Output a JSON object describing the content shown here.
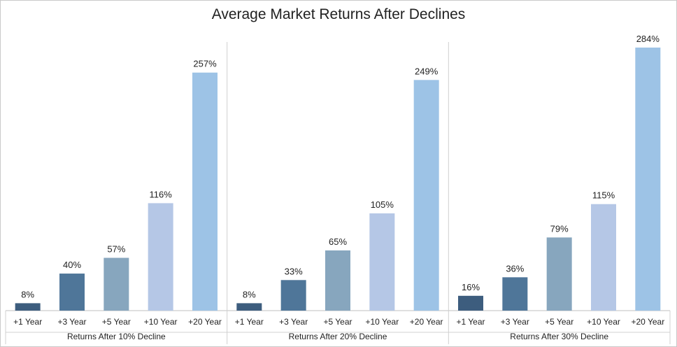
{
  "chart_data": {
    "type": "bar",
    "title": "Average Market Returns After Declines",
    "groups": [
      {
        "label": "Returns After 10% Decline",
        "categories": [
          "+1 Year",
          "+3 Year",
          "+5 Year",
          "+10 Year",
          "+20 Year"
        ],
        "values": [
          8,
          40,
          57,
          116,
          257
        ],
        "value_labels": [
          "8%",
          "40%",
          "57%",
          "116%",
          "257%"
        ]
      },
      {
        "label": "Returns After 20% Decline",
        "categories": [
          "+1 Year",
          "+3 Year",
          "+5 Year",
          "+10 Year",
          "+20 Year"
        ],
        "values": [
          8,
          33,
          65,
          105,
          249
        ],
        "value_labels": [
          "8%",
          "33%",
          "65%",
          "105%",
          "249%"
        ]
      },
      {
        "label": "Returns After 30% Decline",
        "categories": [
          "+1 Year",
          "+3 Year",
          "+5 Year",
          "+10 Year",
          "+20 Year"
        ],
        "values": [
          16,
          36,
          79,
          115,
          284
        ],
        "value_labels": [
          "16%",
          "36%",
          "79%",
          "115%",
          "284%"
        ]
      }
    ],
    "bar_colors": [
      "#3d5d7e",
      "#4f7699",
      "#87a6be",
      "#b5c7e6",
      "#9dc3e6"
    ],
    "ylim": [
      0,
      284
    ],
    "grid": false,
    "legend": "none"
  }
}
